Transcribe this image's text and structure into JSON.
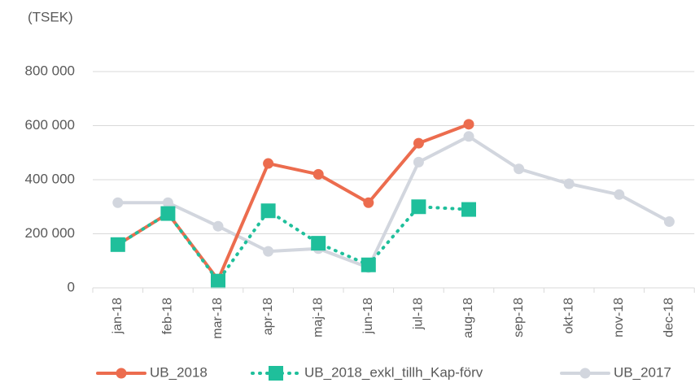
{
  "chart_data": {
    "type": "line",
    "unit_label": "(TSEK)",
    "categories": [
      "jan-18",
      "feb-18",
      "mar-18",
      "apr-18",
      "maj-18",
      "jun-18",
      "jul-18",
      "aug-18",
      "sep-18",
      "okt-18",
      "nov-18",
      "dec-18"
    ],
    "series": [
      {
        "name": "UB_2018",
        "color": "#ec6c4e",
        "marker": "circle",
        "dash": "solid",
        "values": [
          160000,
          275000,
          30000,
          460000,
          420000,
          315000,
          535000,
          605000,
          null,
          null,
          null,
          null
        ]
      },
      {
        "name": "UB_2018_exkl_tillh_Kap-förv",
        "color": "#1fbf9b",
        "marker": "square",
        "dash": "dotted",
        "values": [
          160000,
          275000,
          25000,
          285000,
          165000,
          85000,
          300000,
          290000,
          null,
          null,
          null,
          null
        ]
      },
      {
        "name": "UB_2017",
        "color": "#d2d6de",
        "marker": "circle",
        "dash": "solid",
        "values": [
          315000,
          315000,
          228000,
          135000,
          145000,
          75000,
          465000,
          560000,
          440000,
          385000,
          345000,
          245000
        ]
      }
    ],
    "ylim": [
      0,
      800000
    ],
    "yticks": [
      0,
      {
        "value": 200000,
        "label": "200 000"
      },
      {
        "value": 400000,
        "label": "400 000"
      },
      {
        "value": 600000,
        "label": "600 000"
      },
      {
        "value": 800000,
        "label": "800 000"
      }
    ],
    "grid": true,
    "legend": "bottom"
  }
}
